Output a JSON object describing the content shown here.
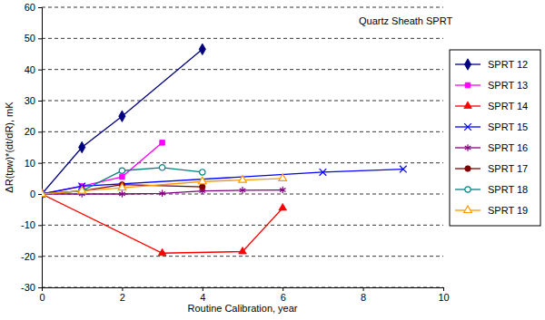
{
  "chart_data": {
    "type": "line",
    "annotation": "Quartz Sheath SPRT",
    "x_label": "Routine Calibration, year",
    "y_label": "ΔR(tpw)*(dt/dR), mK",
    "xlim": [
      0,
      10
    ],
    "xticks": [
      0,
      2,
      4,
      6,
      8,
      10
    ],
    "ylim": [
      -30,
      60
    ],
    "yticks": [
      -30,
      -20,
      -10,
      0,
      10,
      20,
      30,
      40,
      50,
      60
    ],
    "grid": true,
    "legend": "right",
    "series": [
      {
        "name": "SPRT 12",
        "color": "#000080",
        "marker": "diamond",
        "line_style": "solid",
        "x": [
          0,
          1,
          2,
          4
        ],
        "values": [
          0,
          15,
          25,
          46.5
        ]
      },
      {
        "name": "SPRT 13",
        "color": "#ff00ff",
        "marker": "square",
        "line_style": "solid",
        "x": [
          0,
          1,
          2,
          3
        ],
        "values": [
          0,
          2.5,
          5.5,
          16.5
        ]
      },
      {
        "name": "SPRT 14",
        "color": "#ff0000",
        "marker": "triangle",
        "line_style": "solid",
        "x": [
          0,
          3,
          5,
          6
        ],
        "values": [
          0,
          -19,
          -18.5,
          -4.5
        ]
      },
      {
        "name": "SPRT 15",
        "color": "#0000ff",
        "marker": "x",
        "line_style": "solid",
        "x": [
          0,
          1,
          7,
          9
        ],
        "values": [
          0,
          2.5,
          7,
          8
        ]
      },
      {
        "name": "SPRT 16",
        "color": "#800080",
        "marker": "star",
        "line_style": "solid",
        "x": [
          0,
          1,
          2,
          3,
          4,
          5,
          6
        ],
        "values": [
          0,
          0,
          0,
          0.2,
          1,
          1.2,
          1.3
        ]
      },
      {
        "name": "SPRT 17",
        "color": "#800000",
        "marker": "circle",
        "line_style": "solid",
        "x": [
          0,
          1,
          2,
          4
        ],
        "values": [
          0,
          1,
          3,
          2.3
        ]
      },
      {
        "name": "SPRT 18",
        "color": "#008080",
        "marker": "circle-open",
        "line_style": "solid",
        "x": [
          0,
          1,
          2,
          3,
          4
        ],
        "values": [
          0,
          1,
          7.5,
          8.5,
          7
        ]
      },
      {
        "name": "SPRT 19",
        "color": "#ff9900",
        "marker": "triangle-open",
        "line_style": "solid",
        "x": [
          0,
          1,
          2,
          4,
          5,
          6
        ],
        "values": [
          0,
          1,
          2,
          4,
          4.5,
          5
        ]
      }
    ]
  }
}
